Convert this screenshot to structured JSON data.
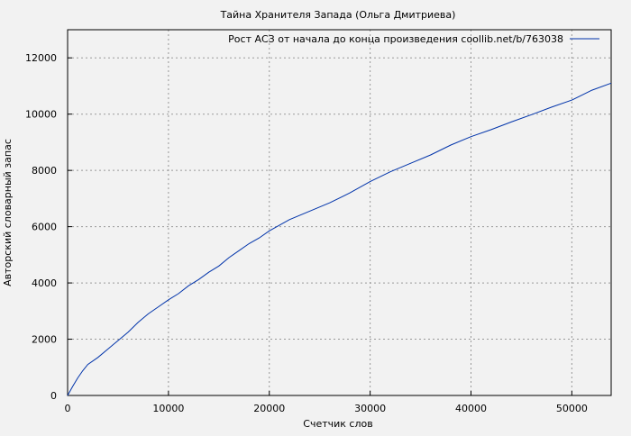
{
  "chart_data": {
    "type": "line",
    "title": "Тайна Хранителя Запада (Ольга Дмитриева)",
    "xlabel": "Счетчик слов",
    "ylabel": "Авторский словарный запас",
    "xlim": [
      0,
      53900
    ],
    "ylim": [
      0,
      13000
    ],
    "xticks": [
      0,
      10000,
      20000,
      30000,
      40000,
      50000
    ],
    "yticks": [
      0,
      2000,
      4000,
      6000,
      8000,
      10000,
      12000
    ],
    "grid": true,
    "legend_position": "top-right",
    "series": [
      {
        "name": "Рост АСЗ от начала до конца произведения coollib.net/b/763038",
        "color": "#0033aa",
        "x": [
          0,
          500,
          1000,
          1500,
          2000,
          3000,
          4000,
          5000,
          6000,
          7000,
          8000,
          9000,
          10000,
          11000,
          12000,
          13000,
          14000,
          15000,
          16000,
          17000,
          18000,
          19000,
          20000,
          21000,
          22000,
          24000,
          26000,
          28000,
          30000,
          32000,
          34000,
          36000,
          38000,
          40000,
          42000,
          44000,
          46000,
          48000,
          50000,
          52000,
          53900
        ],
        "y": [
          0,
          320,
          620,
          880,
          1100,
          1350,
          1650,
          1950,
          2250,
          2600,
          2900,
          3150,
          3400,
          3620,
          3900,
          4120,
          4380,
          4600,
          4900,
          5150,
          5400,
          5600,
          5850,
          6050,
          6250,
          6550,
          6850,
          7200,
          7600,
          7950,
          8250,
          8550,
          8900,
          9200,
          9450,
          9720,
          9980,
          10250,
          10500,
          10850,
          11100
        ]
      }
    ]
  }
}
